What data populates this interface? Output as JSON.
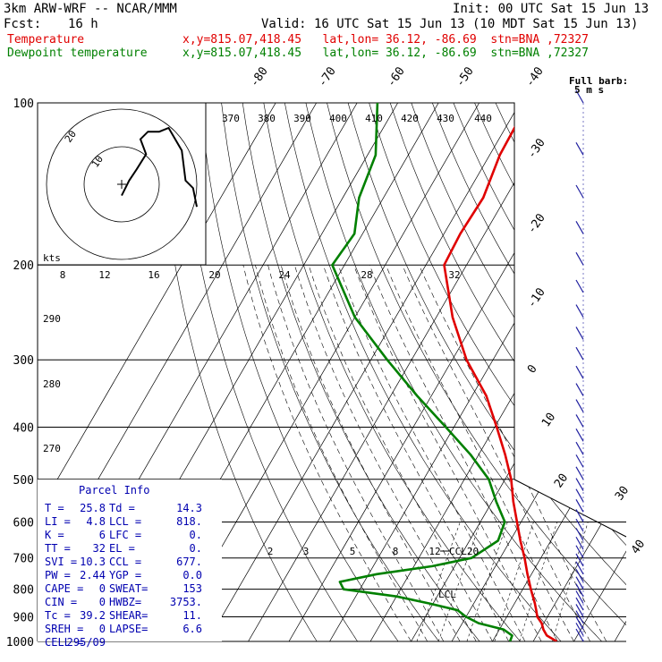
{
  "header": {
    "title": "3km ARW-WRF -- NCAR/MMM",
    "init": "Init: 00 UTC Sat 15 Jun 13",
    "fcst_label": "Fcst:",
    "fcst_value": "16 h",
    "valid": "Valid: 16 UTC Sat 15 Jun 13 (10 MDT Sat 15 Jun 13)",
    "temp_label": "Temperature",
    "temp_loc": "x,y=815.07,418.45   lat,lon= 36.12, -86.69  stn=BNA ,72327",
    "dew_label": "Dewpoint temperature",
    "dew_loc": "x,y=815.07,418.45   lat,lon= 36.12, -86.69  stn=BNA ,72327"
  },
  "colors": {
    "temperature": "#e00000",
    "dewpoint": "#008000",
    "parcel_box": "#0000b0",
    "barbs": "#2020a0"
  },
  "barb_note": {
    "line1": "Full barb:",
    "line2": "5 m s"
  },
  "hodograph": {
    "units": "kts",
    "ring_labels": [
      "10",
      "20"
    ]
  },
  "chart_data": {
    "type": "skew-t",
    "pressure_levels": [
      100,
      200,
      300,
      400,
      500,
      600,
      700,
      800,
      900,
      1000
    ],
    "pressure_labels": [
      "100",
      "200",
      "300",
      "400",
      "500",
      "600",
      "700",
      "800",
      "900",
      "1000"
    ],
    "isotherm_labels_top": [
      "-80",
      "-70",
      "-60",
      "-50",
      "-40"
    ],
    "isotherm_labels_right": [
      "-30",
      "-20",
      "-10",
      "0",
      "10",
      "20",
      "30",
      "40"
    ],
    "theta_labels": [
      "370",
      "380",
      "390",
      "400",
      "410",
      "420",
      "430",
      "440"
    ],
    "mixing_ratio_labels_upper": [
      "8",
      "12",
      "16",
      "20",
      "24",
      "28",
      "32"
    ],
    "mixing_ratio_labels_lower": [
      "2",
      "3",
      "5",
      "8",
      "12"
    ],
    "theta_labels_left": [
      "290",
      "280",
      "270"
    ],
    "annotations": [
      "CCL20",
      "LCL"
    ],
    "temperature": {
      "pressure": [
        1000,
        975,
        950,
        925,
        900,
        875,
        850,
        800,
        750,
        700,
        650,
        600,
        550,
        500,
        450,
        400,
        350,
        300,
        250,
        200,
        175,
        150,
        125,
        100
      ],
      "temp_c": [
        25.8,
        22.5,
        20.8,
        19.5,
        17.5,
        16.3,
        15.0,
        12.0,
        9.0,
        6.0,
        2.5,
        -1.0,
        -4.8,
        -8.5,
        -13.5,
        -19.5,
        -26.5,
        -36.5,
        -46.0,
        -55.5,
        -56.0,
        -55.5,
        -57.5,
        -58.0
      ]
    },
    "dewpoint": {
      "pressure": [
        1000,
        975,
        950,
        925,
        900,
        875,
        850,
        825,
        800,
        775,
        750,
        725,
        700,
        650,
        600,
        550,
        500,
        450,
        400,
        350,
        300,
        250,
        200,
        175,
        150,
        125,
        100
      ],
      "dewp_c": [
        14.3,
        14.0,
        11.0,
        4.0,
        0.0,
        -3.0,
        -11.0,
        -20.0,
        -34.0,
        -36.0,
        -28.0,
        -15.5,
        -7.0,
        -3.0,
        -4.0,
        -9.0,
        -14.0,
        -22.0,
        -32.0,
        -43.5,
        -56.0,
        -70.0,
        -83.0,
        -82.0,
        -86.0,
        -88.0,
        -95.0
      ]
    },
    "hodograph_kts": {
      "u": [
        0.0,
        2.0,
        4.0,
        6.5,
        5.0,
        7.0,
        10.0,
        12.5,
        16.0,
        17.0,
        19.0,
        20.0
      ],
      "v": [
        -3.0,
        1.0,
        4.0,
        8.0,
        12.0,
        14.0,
        14.0,
        15.0,
        9.0,
        1.0,
        -1.0,
        -6.0
      ]
    },
    "wind_barb_pressures": [
      1000,
      975,
      950,
      925,
      900,
      875,
      850,
      825,
      800,
      775,
      750,
      725,
      700,
      675,
      650,
      625,
      600,
      575,
      550,
      525,
      500,
      475,
      450,
      425,
      400,
      375,
      350,
      325,
      300,
      275,
      250,
      225,
      200,
      175,
      150,
      125,
      100
    ]
  },
  "parcel_info": {
    "title": "Parcel Info",
    "rows": [
      [
        "T  =",
        "25.8",
        "Td =",
        "14.3"
      ],
      [
        "LI =",
        "4.8",
        "LCL =",
        "818."
      ],
      [
        "K  =",
        "6",
        "LFC =",
        "0."
      ],
      [
        "TT =",
        "32",
        "EL  =",
        "0."
      ],
      [
        "SVI =",
        "10.3",
        "CCL =",
        "677."
      ],
      [
        "PW =",
        "2.44",
        "YGP =",
        "0.0"
      ],
      [
        "CAPE =",
        "0",
        "SWEAT=",
        "153"
      ],
      [
        "CIN =",
        "0",
        "HWBZ=",
        "3753."
      ],
      [
        "Tc =",
        "39.2",
        "SHEAR=",
        "11."
      ],
      [
        "SREH =",
        "0",
        "LAPSE=",
        "6.6"
      ],
      [
        "CELL =",
        "295/09",
        "",
        ""
      ]
    ]
  }
}
